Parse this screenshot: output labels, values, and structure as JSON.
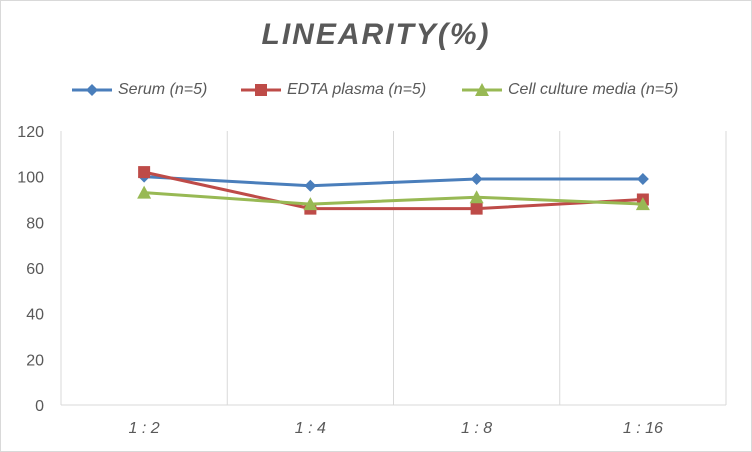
{
  "chart_data": {
    "type": "line",
    "title": "LINEARITY(%)",
    "xlabel": "",
    "ylabel": "",
    "categories": [
      "1:2",
      "1:4",
      "1:8",
      "1:16"
    ],
    "ylim": [
      0,
      120
    ],
    "yticks": [
      0,
      20,
      40,
      60,
      80,
      100,
      120
    ],
    "grid": "vertical",
    "legend_position": "top",
    "series": [
      {
        "name": "Serum (n=5)",
        "values": [
          100,
          96,
          99,
          99
        ],
        "color": "#4a7ebb",
        "marker": "diamond"
      },
      {
        "name": "EDTA plasma (n=5)",
        "values": [
          102,
          86,
          86,
          90
        ],
        "color": "#be4b48",
        "marker": "square"
      },
      {
        "name": "Cell culture media (n=5)",
        "values": [
          93,
          88,
          91,
          88
        ],
        "color": "#98b954",
        "marker": "triangle"
      }
    ]
  }
}
